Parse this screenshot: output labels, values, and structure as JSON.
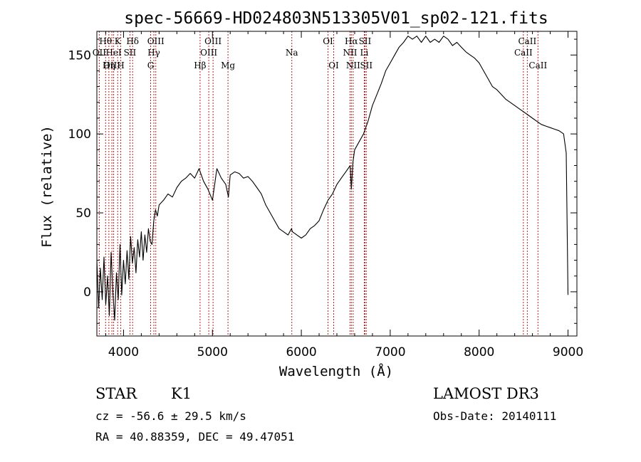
{
  "chart_data": {
    "type": "line",
    "title": "spec-56669-HD024803N513305V01_sp02-121.fits",
    "xlabel": "Wavelength (Å)",
    "ylabel": "Flux (relative)",
    "xlim": [
      3700,
      9100
    ],
    "ylim": [
      -28,
      165
    ],
    "xticks": [
      4000,
      5000,
      6000,
      7000,
      8000,
      9000
    ],
    "yticks": [
      0,
      50,
      100,
      150
    ],
    "minor_xtick_step": 200,
    "minor_ytick_step": 10,
    "series": [
      {
        "name": "flux",
        "x": [
          3700,
          3720,
          3740,
          3760,
          3780,
          3800,
          3820,
          3840,
          3860,
          3880,
          3900,
          3920,
          3940,
          3960,
          3980,
          4000,
          4020,
          4040,
          4060,
          4080,
          4100,
          4120,
          4140,
          4160,
          4180,
          4200,
          4220,
          4240,
          4260,
          4280,
          4300,
          4320,
          4340,
          4360,
          4380,
          4400,
          4450,
          4500,
          4550,
          4600,
          4650,
          4700,
          4750,
          4800,
          4850,
          4900,
          4950,
          5000,
          5050,
          5100,
          5150,
          5180,
          5200,
          5250,
          5300,
          5350,
          5400,
          5450,
          5500,
          5550,
          5600,
          5650,
          5700,
          5750,
          5800,
          5850,
          5890,
          5900,
          5950,
          6000,
          6050,
          6100,
          6150,
          6200,
          6250,
          6300,
          6350,
          6400,
          6450,
          6500,
          6550,
          6563,
          6580,
          6600,
          6650,
          6700,
          6750,
          6800,
          6850,
          6900,
          6950,
          7000,
          7050,
          7100,
          7150,
          7200,
          7250,
          7300,
          7350,
          7400,
          7450,
          7500,
          7550,
          7600,
          7650,
          7700,
          7750,
          7800,
          7850,
          7900,
          7950,
          8000,
          8050,
          8100,
          8150,
          8200,
          8250,
          8300,
          8350,
          8400,
          8450,
          8500,
          8550,
          8600,
          8650,
          8700,
          8750,
          8800,
          8850,
          8900,
          8950,
          8980,
          9000
        ],
        "y": [
          20,
          -10,
          15,
          -5,
          22,
          -8,
          10,
          -15,
          25,
          0,
          -18,
          12,
          -5,
          30,
          -2,
          20,
          5,
          26,
          8,
          35,
          18,
          28,
          12,
          33,
          22,
          38,
          20,
          36,
          25,
          40,
          32,
          30,
          45,
          52,
          48,
          55,
          58,
          62,
          60,
          66,
          70,
          72,
          75,
          72,
          78,
          70,
          65,
          58,
          78,
          72,
          68,
          60,
          74,
          76,
          75,
          72,
          73,
          70,
          66,
          62,
          55,
          50,
          45,
          40,
          38,
          36,
          40,
          38,
          36,
          34,
          36,
          40,
          42,
          45,
          52,
          58,
          62,
          68,
          72,
          76,
          80,
          65,
          82,
          90,
          95,
          100,
          108,
          118,
          125,
          132,
          140,
          145,
          150,
          155,
          158,
          162,
          160,
          162,
          158,
          162,
          158,
          160,
          158,
          162,
          160,
          156,
          158,
          155,
          152,
          150,
          148,
          145,
          140,
          135,
          130,
          128,
          125,
          122,
          120,
          118,
          116,
          114,
          112,
          110,
          108,
          106,
          105,
          104,
          103,
          102,
          100,
          88,
          -2
        ]
      }
    ],
    "emission_lines": [
      {
        "name": "Hθ",
        "wavelength": 3798,
        "row": 1
      },
      {
        "name": "OII",
        "wavelength": 3727,
        "row": 2
      },
      {
        "name": "OIII",
        "wavelength": 3869,
        "row": 3
      },
      {
        "name": "Hη",
        "wavelength": 3835,
        "row": 3
      },
      {
        "name": "K",
        "wavelength": 3934,
        "row": 1
      },
      {
        "name": "HeI",
        "wavelength": 3889,
        "row": 2
      },
      {
        "name": "H",
        "wavelength": 3969,
        "row": 3
      },
      {
        "name": "Hδ",
        "wavelength": 4102,
        "row": 1
      },
      {
        "name": "SII",
        "wavelength": 4072,
        "row": 2
      },
      {
        "name": "OIII",
        "wavelength": 4363,
        "row": 1
      },
      {
        "name": "Hγ",
        "wavelength": 4341,
        "row": 2
      },
      {
        "name": "G",
        "wavelength": 4305,
        "row": 3
      },
      {
        "name": "Hβ",
        "wavelength": 4861,
        "row": 3
      },
      {
        "name": "OIII",
        "wavelength": 5007,
        "row": 1
      },
      {
        "name": "OIII",
        "wavelength": 4959,
        "row": 2
      },
      {
        "name": "Mg",
        "wavelength": 5175,
        "row": 3
      },
      {
        "name": "Na",
        "wavelength": 5893,
        "row": 2
      },
      {
        "name": "OI",
        "wavelength": 6300,
        "row": 1
      },
      {
        "name": "OI",
        "wavelength": 6364,
        "row": 3
      },
      {
        "name": "Hα",
        "wavelength": 6563,
        "row": 1
      },
      {
        "name": "SII",
        "wavelength": 6716,
        "row": 1
      },
      {
        "name": "NII",
        "wavelength": 6548,
        "row": 2
      },
      {
        "name": "Li",
        "wavelength": 6708,
        "row": 2
      },
      {
        "name": "NII",
        "wavelength": 6583,
        "row": 3
      },
      {
        "name": "SII",
        "wavelength": 6731,
        "row": 3
      },
      {
        "name": "CaII",
        "wavelength": 8542,
        "row": 1
      },
      {
        "name": "CaII",
        "wavelength": 8498,
        "row": 2
      },
      {
        "name": "CaII",
        "wavelength": 8662,
        "row": 3
      }
    ],
    "line_color": "#b22222",
    "spectrum_color": "#000000"
  },
  "info": {
    "object_class": "STAR",
    "subclass": "K1",
    "survey": "LAMOST DR3",
    "cz": "cz = -56.6 ± 29.5 km/s",
    "obs_date": "Obs-Date: 20140111",
    "radec": "RA =  40.88359, DEC =  49.47051"
  }
}
